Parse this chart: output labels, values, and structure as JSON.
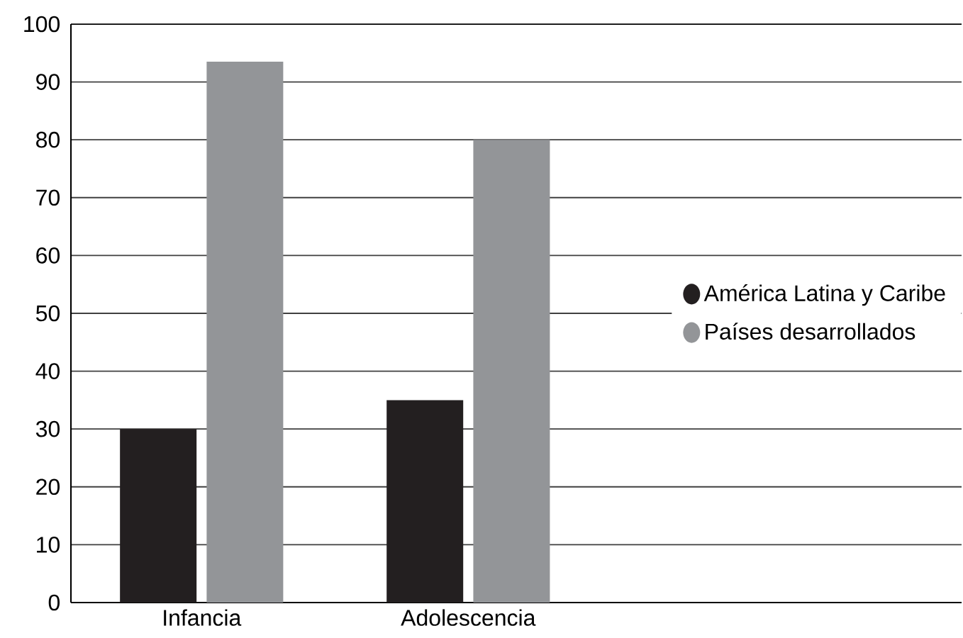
{
  "chart_data": {
    "type": "bar",
    "categories": [
      "Infancia",
      "Adolescencia"
    ],
    "series": [
      {
        "name": "América Latina y Caribe",
        "color": "#231f20",
        "values": [
          30,
          35
        ]
      },
      {
        "name": "Países desarrollados",
        "color": "#939598",
        "values": [
          93.5,
          80
        ]
      }
    ],
    "ylim": [
      0,
      100
    ],
    "yticks": [
      0,
      10,
      20,
      30,
      40,
      50,
      60,
      70,
      80,
      90,
      100
    ],
    "grid": "y",
    "legend": "right"
  }
}
